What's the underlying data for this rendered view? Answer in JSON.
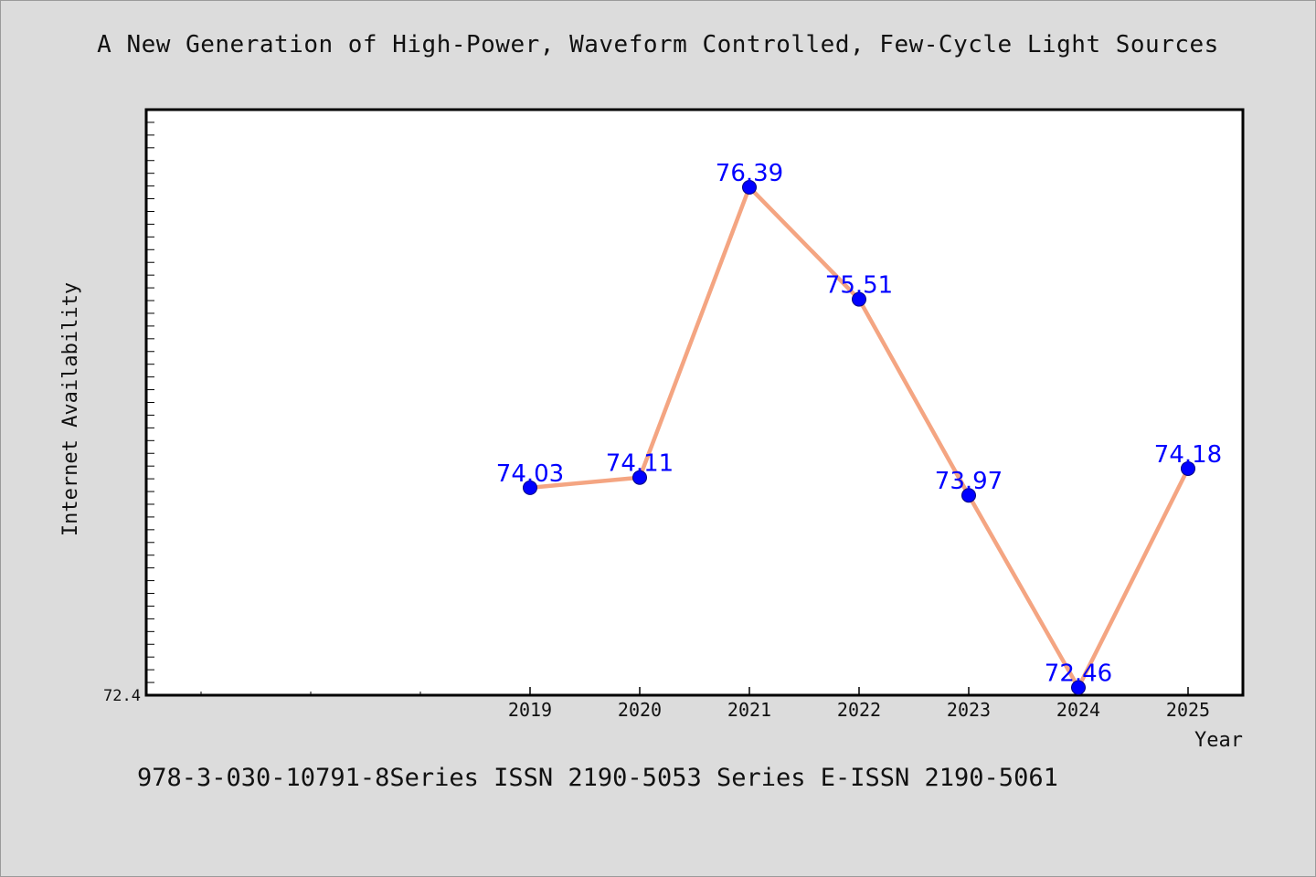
{
  "chart_data": {
    "type": "line",
    "title": "A New Generation of High-Power, Waveform Controlled, Few-Cycle Light Sources",
    "xlabel": "Year",
    "ylabel": "Internet Availability",
    "x": [
      "2019",
      "2020",
      "2021",
      "2022",
      "2023",
      "2024",
      "2025"
    ],
    "series": [
      {
        "values": [
          74.03,
          74.11,
          76.39,
          75.51,
          73.97,
          72.46,
          74.18
        ]
      }
    ],
    "data_labels": [
      "74.03",
      "74.11",
      "76.39",
      "75.51",
      "73.97",
      "72.46",
      "74.18"
    ],
    "y_tick_labels": [
      "72.4"
    ],
    "ylim": [
      72.4,
      77.0
    ],
    "grid": false,
    "legend": "none",
    "colors": {
      "line": "#f4a582",
      "marker": "#0000ff",
      "marker_edge": "#000080",
      "data_label": "#0000ff",
      "plot_background": "#ffffff",
      "figure_background": "#dcdcdc"
    }
  },
  "footer": {
    "text": "978-3-030-10791-8Series ISSN 2190-5053 Series E-ISSN 2190-5061"
  }
}
